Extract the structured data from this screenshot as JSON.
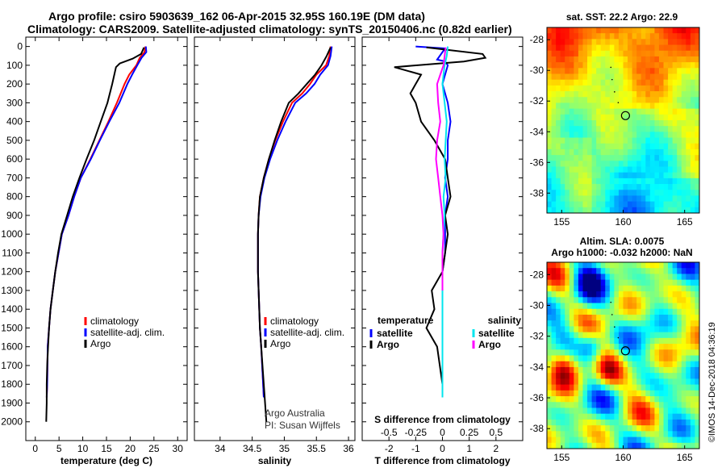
{
  "header": {
    "title_line1": "Argo profile: csiro 5903639_162 06-Apr-2015 32.95S 160.19E (DM data)",
    "title_line2": "Climatology: CARS2009. Satellite-adjusted climatology: synTS_20150406.nc (0.82d earlier)"
  },
  "map_sst": {
    "title": "sat. SST: 22.2  Argo: 22.9",
    "xticks": [
      "155",
      "160",
      "165"
    ],
    "yticks": [
      "-28",
      "-30",
      "-32",
      "-34",
      "-36",
      "-38"
    ],
    "lon_range": [
      153.8,
      166.2
    ],
    "lat_range": [
      -39.3,
      -27.2
    ],
    "float_position": [
      160.19,
      -32.95
    ]
  },
  "map_sla": {
    "title_line1": "Altim. SLA: 0.0075",
    "title_line2": "Argo h1000: -0.032 h2000: NaN",
    "xticks": [
      "155",
      "160",
      "165"
    ],
    "yticks": [
      "-28",
      "-30",
      "-32",
      "-34",
      "-36",
      "-38"
    ],
    "lon_range": [
      153.8,
      166.2
    ],
    "lat_range": [
      -39.3,
      -27.2
    ],
    "float_position": [
      160.19,
      -32.95
    ]
  },
  "credits": {
    "line1": "Argo Australia",
    "line2": "PI: Susan Wijffels",
    "copyright": "©IMOS 14-Dec-2018 04:36:19"
  },
  "colors": {
    "climatology": "#ff0000",
    "satellite": "#0000ff",
    "argo": "#000000",
    "salinity_satellite": "#00e5ee",
    "salinity_argo": "#ff00ff"
  },
  "chart_data": [
    {
      "type": "line",
      "name": "temperature",
      "xlabel": "temperature (deg C)",
      "ylabel": "",
      "xlim": [
        -2,
        32
      ],
      "ylim": [
        2100,
        -50
      ],
      "xticks": [
        0,
        5,
        10,
        15,
        20,
        25,
        30
      ],
      "yticks": [
        0,
        100,
        200,
        300,
        400,
        500,
        600,
        700,
        800,
        900,
        1000,
        1100,
        1200,
        1300,
        1400,
        1500,
        1600,
        1700,
        1800,
        1900,
        2000
      ],
      "legend": [
        "climatology",
        "satellite-adj. clim.",
        "Argo"
      ],
      "series": [
        {
          "name": "climatology",
          "x": [
            23.2,
            23,
            22,
            21.3,
            19.8,
            18.8,
            17.2,
            15.4,
            13.5,
            11.6,
            9.6,
            8.2,
            7,
            5.6,
            4.9,
            4.2,
            3.7,
            3.2,
            2.9,
            2.6,
            2.5,
            2.4
          ],
          "y": [
            0,
            30,
            60,
            100,
            150,
            200,
            300,
            400,
            500,
            600,
            700,
            800,
            900,
            1000,
            1100,
            1200,
            1300,
            1400,
            1500,
            1600,
            1800,
            1870
          ]
        },
        {
          "name": "satellite-adj. clim.",
          "x": [
            23.3,
            23.4,
            22.4,
            21.5,
            20.4,
            19.4,
            17.7,
            15.6,
            13.6,
            11.7,
            9.6,
            8.2,
            7,
            5.6,
            4.9,
            4.2,
            3.7,
            3.2,
            2.9,
            2.6,
            2.5,
            2.4
          ],
          "y": [
            0,
            30,
            60,
            100,
            150,
            200,
            300,
            400,
            500,
            600,
            700,
            800,
            900,
            1000,
            1100,
            1200,
            1300,
            1400,
            1500,
            1600,
            1800,
            1870
          ]
        },
        {
          "name": "Argo",
          "x": [
            22.9,
            22.3,
            20.5,
            17.8,
            17,
            16.2,
            15.2,
            13.8,
            12.4,
            10.8,
            9.3,
            7.9,
            6.7,
            5.5,
            4.8,
            4.2,
            3.7,
            3.2,
            2.9,
            2.7,
            2.5,
            2.4,
            2.4,
            2.3
          ],
          "y": [
            5,
            40,
            65,
            90,
            110,
            200,
            300,
            400,
            500,
            600,
            700,
            800,
            900,
            1000,
            1100,
            1200,
            1300,
            1400,
            1500,
            1600,
            1700,
            1800,
            1900,
            2000
          ]
        }
      ]
    },
    {
      "type": "line",
      "name": "salinity",
      "xlabel": "salinity",
      "ylabel": "",
      "xlim": [
        33.6,
        36.1
      ],
      "ylim": [
        2100,
        -50
      ],
      "xticks": [
        34,
        34.5,
        35,
        35.5,
        36
      ],
      "legend": [
        "climatology",
        "satellite-adj. clim.",
        "Argo"
      ],
      "series": [
        {
          "name": "climatology",
          "x": [
            35.72,
            35.7,
            35.65,
            35.5,
            35.4,
            35.28,
            35.12,
            34.98,
            34.86,
            34.76,
            34.68,
            34.62,
            34.6,
            34.59,
            34.59,
            34.59,
            34.6,
            34.61,
            34.62,
            34.64,
            34.67,
            34.68
          ],
          "y": [
            0,
            50,
            100,
            150,
            200,
            250,
            300,
            400,
            500,
            600,
            700,
            800,
            900,
            1000,
            1100,
            1200,
            1300,
            1400,
            1500,
            1600,
            1800,
            1870
          ]
        },
        {
          "name": "satellite-adj. clim.",
          "x": [
            35.74,
            35.72,
            35.68,
            35.56,
            35.47,
            35.34,
            35.17,
            35.02,
            34.89,
            34.78,
            34.69,
            34.63,
            34.6,
            34.59,
            34.59,
            34.59,
            34.6,
            34.61,
            34.62,
            34.64,
            34.67,
            34.68
          ],
          "y": [
            0,
            50,
            100,
            150,
            200,
            250,
            300,
            400,
            500,
            600,
            700,
            800,
            900,
            1000,
            1100,
            1200,
            1300,
            1400,
            1500,
            1600,
            1800,
            1870
          ]
        },
        {
          "name": "Argo",
          "x": [
            35.72,
            35.66,
            35.58,
            35.48,
            35.35,
            35.22,
            35.07,
            34.95,
            34.85,
            34.76,
            34.68,
            34.62,
            34.6,
            34.59,
            34.59,
            34.59,
            34.6,
            34.61,
            34.62,
            34.64,
            34.66,
            34.68,
            34.7,
            34.72
          ],
          "y": [
            5,
            50,
            100,
            150,
            200,
            250,
            300,
            400,
            500,
            600,
            700,
            800,
            900,
            1000,
            1100,
            1200,
            1300,
            1400,
            1500,
            1600,
            1700,
            1800,
            1900,
            2000
          ]
        }
      ]
    },
    {
      "type": "line",
      "name": "differences",
      "xlabel": "T difference from climatology",
      "xlabel2": "S difference from climatology",
      "xlim": [
        -3,
        3
      ],
      "ylim": [
        2100,
        -50
      ],
      "xticks": [
        -2,
        -1,
        0,
        1,
        2
      ],
      "xticks2": [
        "-0.5",
        "-0.25",
        "0",
        "0.25",
        "0.5"
      ],
      "legend_left_header": "temperature",
      "legend_right_header": "salinity",
      "legend_left": [
        "satellite",
        "Argo"
      ],
      "legend_right": [
        "satellite",
        "Argo"
      ],
      "series": [
        {
          "name": "temperature satellite",
          "x": [
            -1,
            0.1,
            -0.2,
            0.1,
            0.2,
            0.1,
            0,
            0.2,
            0.3,
            0.2,
            0.2,
            0.1,
            0.2,
            0.1,
            0.1,
            0.1,
            0,
            0,
            0,
            0,
            0,
            0
          ],
          "y": [
            0,
            10,
            70,
            80,
            100,
            150,
            200,
            300,
            400,
            500,
            600,
            700,
            800,
            900,
            1000,
            1100,
            1200,
            1300,
            1400,
            1500,
            1600,
            1870
          ]
        },
        {
          "name": "temperature Argo",
          "x": [
            -0.6,
            1.5,
            1.6,
            0.8,
            -1.8,
            -0.8,
            -1,
            -1.2,
            -1,
            -0.8,
            -0.3,
            0.1,
            0.2,
            0.3,
            0.1,
            0.2,
            0.1,
            0,
            -0.4,
            -0.3,
            -0.6,
            -0.2,
            -0.1,
            0
          ],
          "y": [
            5,
            40,
            60,
            80,
            110,
            150,
            200,
            250,
            300,
            400,
            500,
            600,
            700,
            800,
            900,
            1000,
            1100,
            1200,
            1300,
            1400,
            1500,
            1600,
            1700,
            1800
          ]
        },
        {
          "name": "salinity satellite",
          "x": [
            0.05,
            0.04,
            0.02,
            0.01,
            0.0,
            0.02,
            0.04,
            0.03,
            0.02,
            0.03,
            0.01,
            0.02,
            0.01,
            0.0,
            0.0,
            0.0,
            0.0,
            0.0,
            0.0,
            0.0,
            0.0,
            0.0
          ],
          "y": [
            0,
            50,
            100,
            150,
            200,
            300,
            400,
            500,
            600,
            700,
            800,
            900,
            1000,
            1100,
            1200,
            1300,
            1400,
            1500,
            1600,
            1700,
            1800,
            1870
          ]
        },
        {
          "name": "salinity Argo",
          "x": [
            0.03,
            0.01,
            -0.02,
            -0.05,
            -0.04,
            -0.02,
            -0.05,
            -0.06,
            -0.04,
            -0.02,
            0.0,
            0.01,
            0.0,
            0.0,
            0.0
          ],
          "y": [
            5,
            100,
            150,
            200,
            300,
            400,
            500,
            600,
            700,
            800,
            900,
            1000,
            1100,
            1200,
            1300
          ]
        }
      ]
    }
  ]
}
